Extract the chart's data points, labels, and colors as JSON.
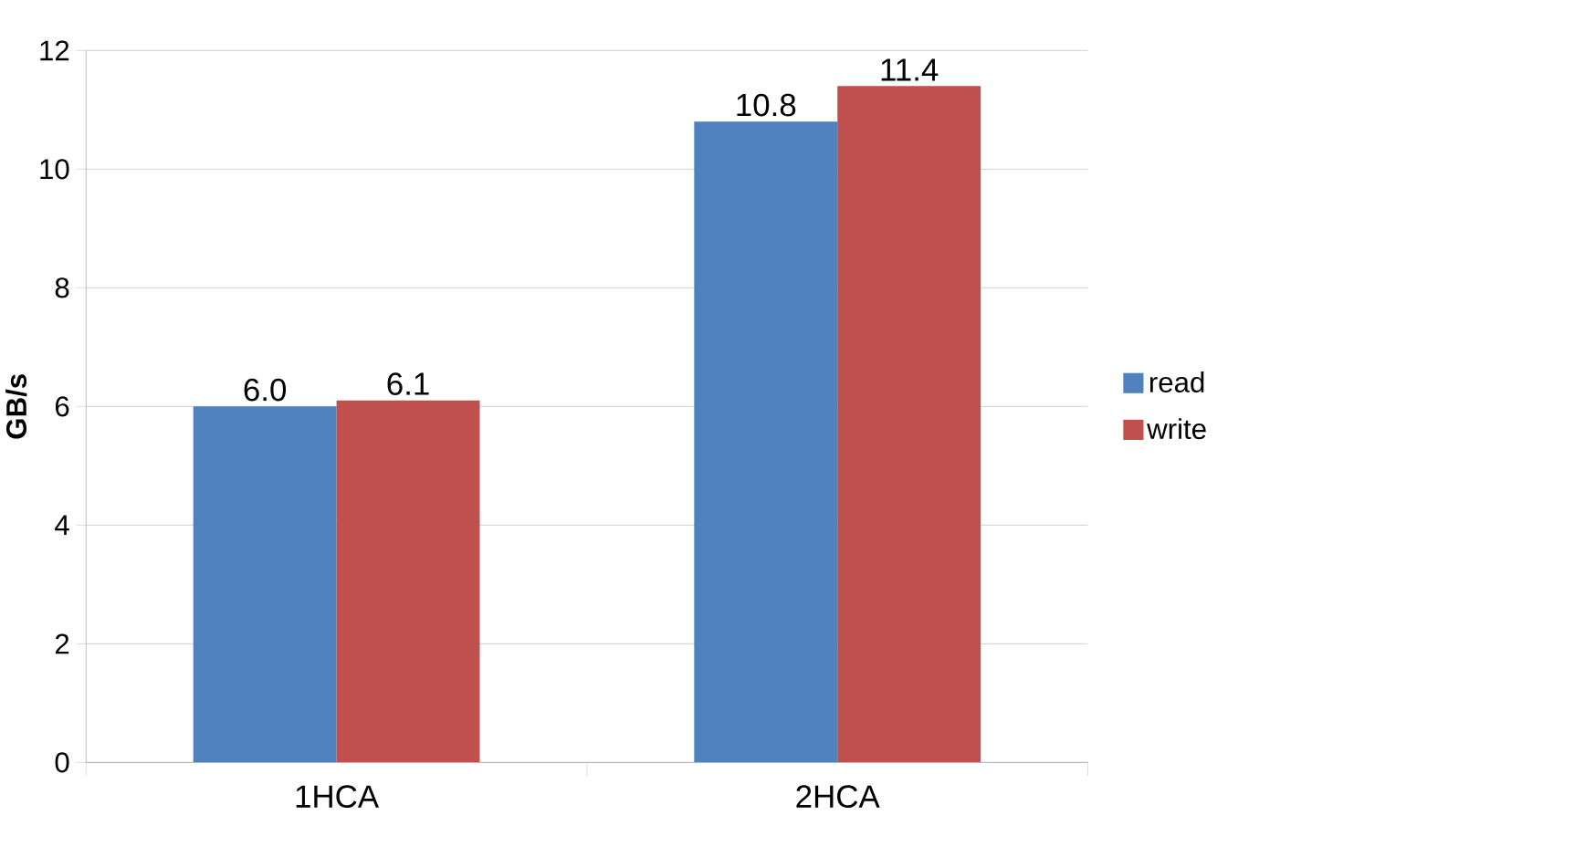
{
  "chart_data": {
    "type": "bar",
    "ylabel": "GB/s",
    "categories": [
      "1HCA",
      "2HCA"
    ],
    "series": [
      {
        "name": "read",
        "color": "#4f81bd",
        "values": [
          6.0,
          10.8
        ],
        "value_labels": [
          "6.0",
          "10.8"
        ]
      },
      {
        "name": "write",
        "color": "#c0504d",
        "values": [
          6.1,
          11.4
        ],
        "value_labels": [
          "6.1",
          "11.4"
        ]
      }
    ],
    "ylim": [
      0,
      12
    ],
    "yticks": [
      0,
      2,
      4,
      6,
      8,
      10,
      12
    ],
    "grid": "y",
    "legend": "right"
  }
}
